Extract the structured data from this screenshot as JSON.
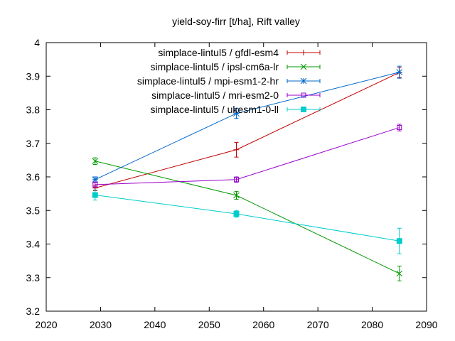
{
  "chart_data": {
    "type": "line",
    "title": "yield-soy-firr [t/ha], Rift valley",
    "xlabel": "",
    "ylabel": "",
    "xlim": [
      2020,
      2090
    ],
    "ylim": [
      3.2,
      4.0
    ],
    "xticks": [
      "2020",
      "2030",
      "2040",
      "2050",
      "2060",
      "2070",
      "2080",
      "2090"
    ],
    "yticks": [
      "3.2",
      "3.3",
      "3.4",
      "3.5",
      "3.6",
      "3.7",
      "3.8",
      "3.9",
      "4"
    ],
    "grid": false,
    "legend_position": "top-right",
    "x": [
      2029,
      2055,
      2085
    ],
    "series": [
      {
        "name": "simplace-lintul5 / gfdl-esm4",
        "color": "#c00000",
        "marker": "plus",
        "values": [
          3.567,
          3.681,
          3.911
        ],
        "errors": [
          0.008,
          0.022,
          0.015
        ]
      },
      {
        "name": "simplace-lintul5 / ipsl-cm6a-lr",
        "color": "#009900",
        "marker": "x",
        "values": [
          3.647,
          3.545,
          3.312
        ],
        "errors": [
          0.01,
          0.012,
          0.022
        ]
      },
      {
        "name": "simplace-lintul5 / mpi-esm1-2-hr",
        "color": "#0066cc",
        "marker": "star",
        "values": [
          3.592,
          3.789,
          3.912
        ],
        "errors": [
          0.008,
          0.015,
          0.018
        ]
      },
      {
        "name": "simplace-lintul5 / mri-esm2-0",
        "color": "#9900cc",
        "marker": "open-square",
        "values": [
          3.577,
          3.592,
          3.747
        ],
        "errors": [
          0.008,
          0.008,
          0.01
        ]
      },
      {
        "name": "simplace-lintul5 / ukesm1-0-ll",
        "color": "#00cccc",
        "marker": "filled-square",
        "values": [
          3.546,
          3.49,
          3.409
        ],
        "errors": [
          0.015,
          0.01,
          0.038
        ]
      }
    ]
  }
}
